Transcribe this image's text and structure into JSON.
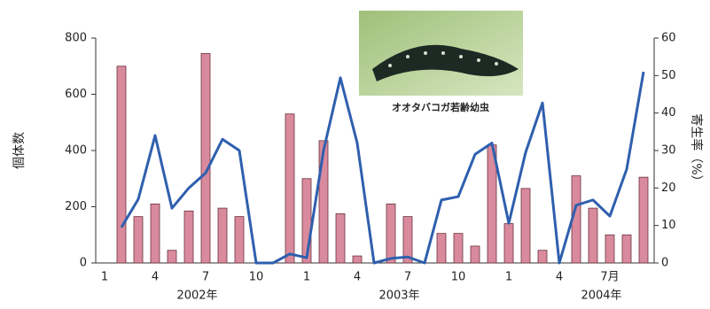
{
  "chart_data": {
    "type": "bar-line",
    "y_label": "個体数",
    "y2_label": "寄生率（%）",
    "photo_caption": "オオタバコガ若齢幼虫",
    "categories": [
      "1",
      null,
      null,
      "4",
      null,
      null,
      "7",
      null,
      null,
      "10",
      null,
      null,
      "1",
      null,
      null,
      "4",
      null,
      null,
      "7",
      null,
      null,
      "10",
      null,
      null,
      "1",
      null,
      null,
      "4",
      null,
      null,
      "7月",
      null,
      null
    ],
    "year_labels": [
      "2002年",
      "2003年",
      "2004年"
    ],
    "series": [
      {
        "type": "bar",
        "color": "#d98a9c",
        "values": [
          null,
          700,
          165,
          210,
          45,
          185,
          745,
          195,
          165,
          0,
          0,
          530,
          300,
          435,
          175,
          25,
          0,
          210,
          165,
          0,
          105,
          105,
          60,
          420,
          140,
          265,
          45,
          0,
          310,
          195,
          100,
          100,
          305
        ]
      },
      {
        "type": "line",
        "axis": "y2",
        "color": "#2f5fae",
        "values": [
          null,
          9.5,
          17,
          34,
          14.6,
          20,
          24,
          33,
          30,
          0,
          0,
          2.4,
          1.4,
          30,
          49.4,
          32,
          0,
          1.2,
          1.6,
          0,
          16.8,
          17.7,
          29,
          32,
          10.6,
          29.5,
          42.7,
          0,
          15.4,
          16.8,
          12.5,
          25,
          51
        ]
      }
    ],
    "ylim": [
      0,
      800
    ],
    "yticks": [
      0,
      200,
      400,
      600,
      800
    ],
    "y2lim": [
      0,
      60
    ],
    "y2ticks": [
      0,
      10,
      20,
      30,
      40,
      50,
      60
    ]
  }
}
